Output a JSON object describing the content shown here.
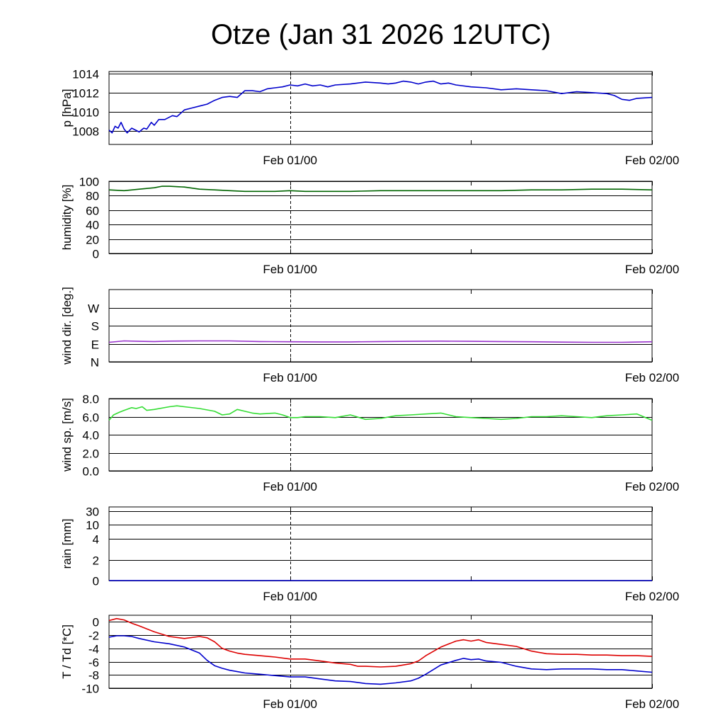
{
  "chart_data": {
    "type": "line",
    "title": "Otze (Jan 31 2026 12UTC)",
    "time_labels": [
      "Feb 01/00",
      "Feb 02/00"
    ],
    "x_unit": "hours since Jan 31 12UTC",
    "xlim": [
      0,
      36
    ],
    "reference_line_x": 12,
    "panels": [
      {
        "id": "pressure",
        "ylabel": "p [hPa]",
        "ylim": [
          1006.6,
          1014.2
        ],
        "ticks": [
          1008,
          1010,
          1012,
          1014
        ],
        "tick_labels": [
          "1008",
          "1010",
          "1012",
          "1014"
        ],
        "series": [
          {
            "name": "pressure",
            "color": "#0000cc",
            "x": [
              0,
              0.2,
              0.4,
              0.6,
              0.8,
              1.0,
              1.2,
              1.5,
              2.0,
              2.3,
              2.5,
              2.8,
              3.0,
              3.3,
              3.7,
              4.2,
              4.5,
              5.0,
              5.5,
              6.0,
              6.5,
              7.0,
              7.5,
              8.0,
              8.5,
              9.0,
              9.5,
              10.0,
              10.5,
              11.0,
              11.5,
              12.0,
              12.5,
              13.0,
              13.5,
              14.0,
              14.5,
              15.0,
              16.0,
              17.0,
              18.0,
              18.5,
              19.0,
              19.5,
              20.0,
              20.5,
              21.0,
              21.5,
              22.0,
              22.5,
              23.0,
              24.0,
              25.0,
              26.0,
              27.0,
              28.0,
              29.0,
              30.0,
              31.0,
              32.0,
              33.0,
              33.5,
              34.0,
              34.5,
              35.0,
              36.0
            ],
            "y": [
              1008.1,
              1007.8,
              1008.5,
              1008.3,
              1008.9,
              1008.2,
              1007.8,
              1008.3,
              1007.9,
              1008.3,
              1008.2,
              1008.9,
              1008.6,
              1009.2,
              1009.2,
              1009.6,
              1009.5,
              1010.2,
              1010.4,
              1010.6,
              1010.8,
              1011.2,
              1011.5,
              1011.6,
              1011.5,
              1012.2,
              1012.2,
              1012.1,
              1012.4,
              1012.5,
              1012.6,
              1012.8,
              1012.7,
              1012.9,
              1012.7,
              1012.8,
              1012.6,
              1012.8,
              1012.9,
              1013.1,
              1013.0,
              1012.9,
              1013.0,
              1013.2,
              1013.1,
              1012.9,
              1013.1,
              1013.2,
              1012.9,
              1013.0,
              1012.8,
              1012.6,
              1012.5,
              1012.3,
              1012.4,
              1012.3,
              1012.2,
              1011.9,
              1012.1,
              1012.0,
              1011.9,
              1011.7,
              1011.3,
              1011.2,
              1011.4,
              1011.5
            ]
          }
        ]
      },
      {
        "id": "humidity",
        "ylabel": "humidity [%]",
        "ylim": [
          0,
          100
        ],
        "ticks": [
          0,
          20,
          40,
          60,
          80,
          100
        ],
        "tick_labels": [
          "0",
          "20",
          "40",
          "60",
          "80",
          "100"
        ],
        "series": [
          {
            "name": "humidity",
            "color": "#006400",
            "x": [
              0,
              1,
              2,
              3,
              3.5,
              4,
              5,
              6,
              7,
              8,
              9,
              10,
              11,
              12,
              13,
              14,
              16,
              18,
              20,
              22,
              24,
              26,
              28,
              30,
              32,
              34,
              36
            ],
            "y": [
              88,
              87,
              89,
              91,
              93,
              93,
              92,
              89,
              88,
              87,
              86,
              86,
              86,
              87,
              86,
              86,
              86,
              87,
              87,
              87,
              87,
              87,
              88,
              88,
              89,
              89,
              88
            ]
          }
        ]
      },
      {
        "id": "wind_dir",
        "ylabel": "wind dir. [deg.]",
        "ylim": [
          0,
          360
        ],
        "ticks": [
          0,
          90,
          180,
          270
        ],
        "tick_labels": [
          "N",
          "E",
          "S",
          "W"
        ],
        "series": [
          {
            "name": "wind direction",
            "color": "#9933cc",
            "x": [
              0,
              1,
              2,
              3,
              4,
              6,
              8,
              10,
              12,
              14,
              16,
              18,
              20,
              22,
              24,
              26,
              28,
              30,
              32,
              34,
              36
            ],
            "y": [
              97,
              104,
              102,
              101,
              103,
              104,
              104,
              101,
              100,
              99,
              99,
              101,
              102,
              103,
              102,
              101,
              100,
              98,
              97,
              97,
              100
            ]
          }
        ]
      },
      {
        "id": "wind_speed",
        "ylabel": "wind sp. [m/s]",
        "ylim": [
          0,
          8
        ],
        "ticks": [
          0,
          2,
          4,
          6,
          8
        ],
        "tick_labels": [
          "0.0",
          "2.0",
          "4.0",
          "6.0",
          "8.0"
        ],
        "series": [
          {
            "name": "wind speed",
            "color": "#33dd33",
            "x": [
              0,
              0.3,
              0.7,
              1.0,
              1.5,
              1.8,
              2.2,
              2.5,
              3.0,
              4.0,
              4.5,
              5.0,
              6.0,
              7.0,
              7.5,
              8.0,
              8.5,
              9.0,
              9.5,
              10.0,
              11.0,
              11.5,
              12.0,
              12.5,
              13.0,
              14.0,
              15.0,
              16.0,
              17.0,
              18.0,
              19.0,
              20.0,
              21.0,
              22.0,
              23.0,
              24.0,
              25.0,
              26.0,
              27.0,
              28.0,
              29.0,
              30.0,
              31.0,
              32.0,
              33.0,
              34.0,
              35.0,
              36.0
            ],
            "y": [
              5.6,
              6.2,
              6.5,
              6.7,
              7.0,
              6.9,
              7.1,
              6.7,
              6.8,
              7.1,
              7.2,
              7.1,
              6.9,
              6.6,
              6.2,
              6.3,
              6.8,
              6.6,
              6.4,
              6.3,
              6.4,
              6.2,
              5.9,
              5.9,
              6.0,
              6.0,
              5.9,
              6.2,
              5.7,
              5.8,
              6.1,
              6.2,
              6.3,
              6.4,
              6.0,
              5.9,
              5.8,
              5.7,
              5.8,
              6.0,
              6.0,
              6.1,
              6.0,
              5.9,
              6.1,
              6.2,
              6.3,
              5.6
            ]
          }
        ]
      },
      {
        "id": "rain",
        "ylabel": "rain [mm]",
        "scale": "piecewise",
        "tick_values": [
          0,
          2,
          4,
          10,
          30
        ],
        "tick_labels": [
          "0",
          "2",
          "4",
          "10",
          "30"
        ],
        "series": [
          {
            "name": "rain",
            "color": "#0000cc",
            "x": [
              0,
              36
            ],
            "y": [
              0,
              0
            ]
          }
        ]
      },
      {
        "id": "temperature",
        "ylabel": "T / Td [*C]",
        "ylim": [
          -10,
          1
        ],
        "ticks": [
          -10,
          -8,
          -6,
          -4,
          -2,
          0
        ],
        "tick_labels": [
          "-10",
          "-8",
          "-6",
          "-4",
          "-2",
          "0"
        ],
        "series": [
          {
            "name": "T",
            "color": "#dd0000",
            "x": [
              0,
              0.5,
              1.0,
              1.5,
              2.0,
              3.0,
              4.0,
              5.0,
              6.0,
              6.5,
              7.0,
              7.5,
              8.0,
              8.5,
              9.0,
              10.0,
              11.0,
              12.0,
              13.0,
              14.0,
              15.0,
              16.0,
              16.5,
              17.0,
              18.0,
              19.0,
              20.0,
              20.5,
              21.0,
              22.0,
              23.0,
              23.5,
              24.0,
              24.5,
              25.0,
              26.0,
              27.0,
              28.0,
              29.0,
              30.0,
              31.0,
              32.0,
              33.0,
              34.0,
              35.0,
              36.0
            ],
            "y": [
              0.2,
              0.5,
              0.3,
              -0.2,
              -0.6,
              -1.5,
              -2.2,
              -2.5,
              -2.2,
              -2.4,
              -3.0,
              -4.0,
              -4.4,
              -4.7,
              -4.9,
              -5.1,
              -5.3,
              -5.6,
              -5.6,
              -5.9,
              -6.2,
              -6.4,
              -6.7,
              -6.7,
              -6.8,
              -6.7,
              -6.3,
              -5.9,
              -5.1,
              -3.8,
              -2.9,
              -2.7,
              -2.9,
              -2.7,
              -3.1,
              -3.4,
              -3.7,
              -4.4,
              -4.8,
              -4.9,
              -4.9,
              -5.0,
              -5.0,
              -5.1,
              -5.1,
              -5.2
            ]
          },
          {
            "name": "Td",
            "color": "#0000cc",
            "x": [
              0,
              0.5,
              1.0,
              1.5,
              2.0,
              3.0,
              4.0,
              5.0,
              6.0,
              6.5,
              7.0,
              7.5,
              8.0,
              8.5,
              9.0,
              10.0,
              11.0,
              12.0,
              13.0,
              14.0,
              15.0,
              16.0,
              17.0,
              18.0,
              19.0,
              20.0,
              20.5,
              21.0,
              22.0,
              23.0,
              23.5,
              24.0,
              24.5,
              25.0,
              26.0,
              27.0,
              28.0,
              29.0,
              30.0,
              31.0,
              32.0,
              33.0,
              34.0,
              35.0,
              36.0
            ],
            "y": [
              -2.3,
              -2.1,
              -2.1,
              -2.2,
              -2.5,
              -3.0,
              -3.3,
              -3.8,
              -4.7,
              -5.8,
              -6.6,
              -7.0,
              -7.3,
              -7.5,
              -7.7,
              -7.9,
              -8.1,
              -8.3,
              -8.3,
              -8.6,
              -8.9,
              -9.0,
              -9.3,
              -9.4,
              -9.2,
              -8.9,
              -8.5,
              -7.9,
              -6.5,
              -5.8,
              -5.5,
              -5.7,
              -5.6,
              -5.9,
              -6.1,
              -6.7,
              -7.1,
              -7.2,
              -7.1,
              -7.1,
              -7.1,
              -7.2,
              -7.2,
              -7.4,
              -7.6
            ]
          }
        ]
      }
    ]
  }
}
